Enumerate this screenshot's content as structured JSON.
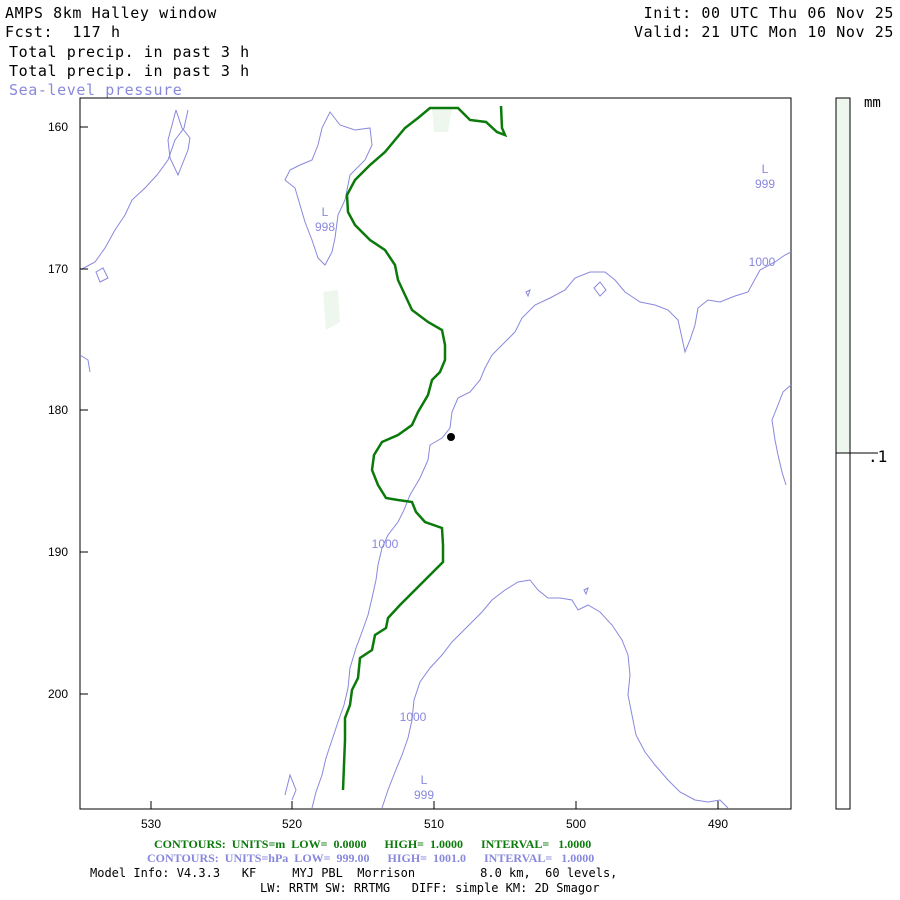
{
  "header": {
    "title": "AMPS 8km Halley window",
    "forecast": "Fcst:  117 h",
    "init": "Init: 00 UTC Thu 06 Nov 25",
    "valid": "Valid: 21 UTC Mon 10 Nov 25",
    "field1": "Total precip. in past 3 h",
    "field2": "Total precip. in past 3 h",
    "field3": "Sea-level pressure"
  },
  "axes": {
    "x_ticks": [
      "530",
      "520",
      "510",
      "500",
      "490"
    ],
    "y_ticks": [
      "160",
      "170",
      "180",
      "190",
      "200"
    ]
  },
  "colorbar": {
    "units": "mm",
    "level": ".1"
  },
  "contour_labels": {
    "low_1": "L",
    "low_1_value": "998",
    "low_2": "L",
    "low_2_value": "999",
    "low_3": "L",
    "low_3_value": "999",
    "isobar_a": "1000",
    "isobar_b": "1000",
    "isobar_c": "1000"
  },
  "footer": {
    "green_line": "CONTOURS:  UNITS=m  LOW=  0.0000      HIGH=  1.0000      INTERVAL=   1.0000",
    "blue_line": "CONTOURS:  UNITS=hPa  LOW=  999.00      HIGH=  1001.0      INTERVAL=   1.0000",
    "model_line": "Model Info: V4.3.3   KF     MYJ PBL  Morrison         8.0 km,  60 levels,",
    "model_line2": "LW: RRTM SW: RRTMG   DIFF: simple KM: 2D Smagor"
  },
  "colors": {
    "isobar": "#8888dd",
    "terrain_contour": "#0b7a0b",
    "precip_shade": "#eef7ee"
  }
}
